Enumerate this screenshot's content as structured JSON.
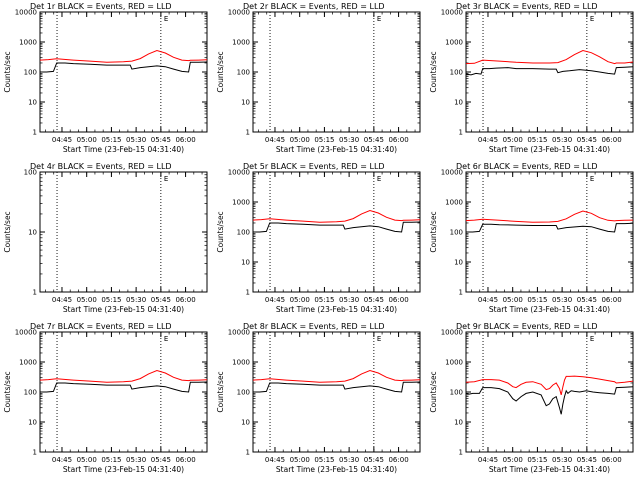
{
  "chart_data": [
    {
      "type": "line",
      "title": "Det 1r BLACK = Events, RED = LLD",
      "ylabel": "Counts/sec",
      "xlabel": "Start Time (23-Feb-15 04:31:40)",
      "x_ticks": [
        "04:45",
        "05:00",
        "05:15",
        "05:30",
        "05:45",
        "06:00"
      ],
      "y_ticks": [
        "1",
        "10",
        "100",
        "1000",
        "10000"
      ],
      "yscale": "log",
      "ylim": [
        1,
        10000
      ],
      "xlim": [
        "04:31:40",
        "06:13"
      ],
      "flag": "E",
      "vlines": [
        "04:42",
        "05:45"
      ],
      "series": [
        {
          "name": "Events",
          "color": "#000000",
          "x": [
            0,
            2,
            4,
            8,
            10,
            15,
            20,
            30,
            40,
            50,
            54,
            55,
            60,
            70,
            75,
            80,
            85,
            89,
            90,
            95,
            100
          ],
          "values": [
            100,
            100,
            100,
            105,
            200,
            200,
            190,
            180,
            170,
            170,
            170,
            125,
            140,
            160,
            150,
            125,
            105,
            100,
            210,
            210,
            215
          ]
        },
        {
          "name": "LLD",
          "color": "#ff0000",
          "x": [
            0,
            5,
            10,
            20,
            30,
            40,
            50,
            55,
            60,
            65,
            70,
            75,
            80,
            85,
            89,
            90,
            95,
            100
          ],
          "values": [
            250,
            260,
            275,
            250,
            230,
            210,
            220,
            230,
            280,
            400,
            520,
            430,
            310,
            250,
            240,
            245,
            250,
            255
          ]
        }
      ]
    },
    {
      "type": "line",
      "title": "Det 2r BLACK = Events, RED = LLD",
      "ylabel": "Counts/sec",
      "xlabel": "Start Time (23-Feb-15 04:31:40)",
      "x_ticks": [
        "04:45",
        "05:00",
        "05:15",
        "05:30",
        "05:45",
        "06:00"
      ],
      "y_ticks": [
        "1",
        "10",
        "100",
        "1000",
        "10000"
      ],
      "yscale": "log",
      "ylim": [
        1,
        10000
      ],
      "xlim": [
        "04:31:40",
        "06:13"
      ],
      "flag": "E",
      "vlines": [
        "04:42",
        "05:45"
      ],
      "series": []
    },
    {
      "type": "line",
      "title": "Det 3r BLACK = Events, RED = LLD",
      "ylabel": "Counts/sec",
      "xlabel": "Start Time (23-Feb-15 04:31:40)",
      "x_ticks": [
        "04:45",
        "05:00",
        "05:15",
        "05:30",
        "05:45",
        "06:00"
      ],
      "y_ticks": [
        "1",
        "10",
        "100",
        "1000",
        "10000"
      ],
      "yscale": "log",
      "ylim": [
        1,
        10000
      ],
      "xlim": [
        "04:31:40",
        "06:13"
      ],
      "flag": "E",
      "vlines": [
        "04:42",
        "05:45"
      ],
      "series": [
        {
          "name": "Events",
          "color": "#000000",
          "x": [
            0,
            3,
            6,
            9,
            10,
            14,
            18,
            25,
            30,
            40,
            50,
            54,
            55,
            58,
            62,
            68,
            75,
            80,
            85,
            89,
            90,
            95,
            100
          ],
          "values": [
            85,
            80,
            90,
            85,
            130,
            130,
            135,
            140,
            130,
            130,
            125,
            125,
            95,
            105,
            110,
            120,
            110,
            100,
            90,
            85,
            140,
            145,
            150
          ]
        },
        {
          "name": "LLD",
          "color": "#ff0000",
          "x": [
            0,
            5,
            10,
            20,
            30,
            40,
            50,
            55,
            60,
            65,
            70,
            75,
            80,
            85,
            89,
            90,
            95,
            100
          ],
          "values": [
            190,
            195,
            250,
            230,
            210,
            200,
            200,
            205,
            260,
            380,
            520,
            440,
            320,
            220,
            190,
            200,
            200,
            215
          ]
        }
      ]
    },
    {
      "type": "line",
      "title": "Det 4r BLACK = Events, RED = LLD",
      "ylabel": "Counts/sec",
      "xlabel": "Start Time (23-Feb-15 04:31:40)",
      "x_ticks": [
        "04:45",
        "05:00",
        "05:15",
        "05:30",
        "05:45",
        "06:00"
      ],
      "y_ticks": [
        "1",
        "10",
        "100"
      ],
      "yscale": "log",
      "ylim": [
        1,
        100
      ],
      "xlim": [
        "04:31:40",
        "06:13"
      ],
      "flag": "E",
      "vlines": [
        "04:42",
        "05:45"
      ],
      "series": []
    },
    {
      "type": "line",
      "title": "Det 5r BLACK = Events, RED = LLD",
      "ylabel": "Counts/sec",
      "xlabel": "Start Time (23-Feb-15 04:31:40)",
      "x_ticks": [
        "04:45",
        "05:00",
        "05:15",
        "05:30",
        "05:45",
        "06:00"
      ],
      "y_ticks": [
        "1",
        "10",
        "100",
        "1000",
        "10000"
      ],
      "yscale": "log",
      "ylim": [
        1,
        10000
      ],
      "xlim": [
        "04:31:40",
        "06:13"
      ],
      "flag": "E",
      "vlines": [
        "04:42",
        "05:45"
      ],
      "series": [
        {
          "name": "Events",
          "color": "#000000",
          "x": [
            0,
            2,
            4,
            8,
            10,
            15,
            20,
            30,
            40,
            50,
            54,
            55,
            60,
            70,
            75,
            80,
            85,
            89,
            90,
            95,
            100
          ],
          "values": [
            100,
            100,
            100,
            105,
            200,
            200,
            190,
            180,
            170,
            170,
            170,
            125,
            140,
            160,
            150,
            125,
            105,
            100,
            210,
            210,
            215
          ]
        },
        {
          "name": "LLD",
          "color": "#ff0000",
          "x": [
            0,
            5,
            10,
            20,
            30,
            40,
            50,
            55,
            60,
            65,
            70,
            75,
            80,
            85,
            89,
            90,
            95,
            100
          ],
          "values": [
            250,
            260,
            275,
            250,
            230,
            210,
            220,
            230,
            280,
            400,
            520,
            430,
            310,
            250,
            240,
            245,
            250,
            255
          ]
        }
      ]
    },
    {
      "type": "line",
      "title": "Det 6r BLACK = Events, RED = LLD",
      "ylabel": "Counts/sec",
      "xlabel": "Start Time (23-Feb-15 04:31:40)",
      "x_ticks": [
        "04:45",
        "05:00",
        "05:15",
        "05:30",
        "05:45",
        "06:00"
      ],
      "y_ticks": [
        "1",
        "10",
        "100",
        "1000",
        "10000"
      ],
      "yscale": "log",
      "ylim": [
        1,
        10000
      ],
      "xlim": [
        "04:31:40",
        "06:13"
      ],
      "flag": "E",
      "vlines": [
        "04:42",
        "05:45"
      ],
      "series": [
        {
          "name": "Events",
          "color": "#000000",
          "x": [
            0,
            2,
            4,
            8,
            10,
            15,
            20,
            30,
            40,
            50,
            54,
            55,
            60,
            70,
            75,
            80,
            85,
            89,
            90,
            95,
            100
          ],
          "values": [
            100,
            100,
            100,
            105,
            180,
            180,
            175,
            170,
            165,
            165,
            165,
            125,
            140,
            155,
            150,
            125,
            105,
            100,
            190,
            190,
            195
          ]
        },
        {
          "name": "LLD",
          "color": "#ff0000",
          "x": [
            0,
            5,
            10,
            20,
            30,
            40,
            50,
            55,
            60,
            65,
            70,
            75,
            80,
            85,
            89,
            90,
            95,
            100
          ],
          "values": [
            240,
            250,
            265,
            245,
            225,
            210,
            215,
            225,
            275,
            390,
            500,
            420,
            300,
            245,
            235,
            240,
            245,
            250
          ]
        }
      ]
    },
    {
      "type": "line",
      "title": "Det 7r BLACK = Events, RED = LLD",
      "ylabel": "Counts/sec",
      "xlabel": "Start Time (23-Feb-15 04:31:40)",
      "x_ticks": [
        "04:45",
        "05:00",
        "05:15",
        "05:30",
        "05:45",
        "06:00"
      ],
      "y_ticks": [
        "1",
        "10",
        "100",
        "1000",
        "10000"
      ],
      "yscale": "log",
      "ylim": [
        1,
        10000
      ],
      "xlim": [
        "04:31:40",
        "06:13"
      ],
      "flag": "E",
      "vlines": [
        "04:42",
        "05:45"
      ],
      "series": [
        {
          "name": "Events",
          "color": "#000000",
          "x": [
            0,
            2,
            4,
            8,
            10,
            15,
            20,
            30,
            40,
            50,
            54,
            55,
            60,
            70,
            75,
            80,
            85,
            89,
            90,
            95,
            100
          ],
          "values": [
            100,
            100,
            100,
            105,
            200,
            200,
            190,
            180,
            170,
            170,
            170,
            125,
            140,
            160,
            150,
            125,
            105,
            100,
            210,
            210,
            215
          ]
        },
        {
          "name": "LLD",
          "color": "#ff0000",
          "x": [
            0,
            5,
            10,
            20,
            30,
            40,
            50,
            55,
            60,
            65,
            70,
            75,
            80,
            85,
            89,
            90,
            95,
            100
          ],
          "values": [
            250,
            260,
            275,
            250,
            230,
            210,
            220,
            230,
            280,
            400,
            520,
            430,
            310,
            250,
            240,
            245,
            250,
            255
          ]
        }
      ]
    },
    {
      "type": "line",
      "title": "Det 8r BLACK = Events, RED = LLD",
      "ylabel": "Counts/sec",
      "xlabel": "Start Time (23-Feb-15 04:31:40)",
      "x_ticks": [
        "04:45",
        "05:00",
        "05:15",
        "05:30",
        "05:45",
        "06:00"
      ],
      "y_ticks": [
        "1",
        "10",
        "100",
        "1000",
        "10000"
      ],
      "yscale": "log",
      "ylim": [
        1,
        10000
      ],
      "xlim": [
        "04:31:40",
        "06:13"
      ],
      "flag": "E",
      "vlines": [
        "04:42",
        "05:45"
      ],
      "series": [
        {
          "name": "Events",
          "color": "#000000",
          "x": [
            0,
            2,
            4,
            8,
            10,
            15,
            20,
            30,
            40,
            50,
            54,
            55,
            60,
            70,
            75,
            80,
            85,
            89,
            90,
            95,
            100
          ],
          "values": [
            100,
            100,
            100,
            105,
            200,
            200,
            190,
            180,
            170,
            170,
            170,
            125,
            140,
            160,
            150,
            125,
            105,
            100,
            210,
            210,
            215
          ]
        },
        {
          "name": "LLD",
          "color": "#ff0000",
          "x": [
            0,
            5,
            10,
            20,
            30,
            40,
            50,
            55,
            60,
            65,
            70,
            75,
            80,
            85,
            89,
            90,
            95,
            100
          ],
          "values": [
            250,
            260,
            275,
            250,
            230,
            210,
            220,
            230,
            280,
            400,
            520,
            430,
            310,
            250,
            240,
            245,
            250,
            255
          ]
        }
      ]
    },
    {
      "type": "line",
      "title": "Det 9r BLACK = Events, RED = LLD",
      "ylabel": "Counts/sec",
      "xlabel": "Start Time (23-Feb-15 04:31:40)",
      "x_ticks": [
        "04:45",
        "05:00",
        "05:15",
        "05:30",
        "05:45",
        "06:00"
      ],
      "y_ticks": [
        "1",
        "10",
        "100",
        "1000",
        "10000"
      ],
      "yscale": "log",
      "ylim": [
        1,
        10000
      ],
      "xlim": [
        "04:31:40",
        "06:13"
      ],
      "flag": "E",
      "vlines": [
        "04:42",
        "05:45"
      ],
      "series": [
        {
          "name": "Events",
          "color": "#000000",
          "x": [
            0,
            2,
            4,
            8,
            10,
            15,
            20,
            25,
            28,
            30,
            33,
            36,
            40,
            45,
            48,
            50,
            52,
            54,
            56,
            57,
            58,
            59,
            60,
            61,
            62,
            63,
            65,
            68,
            72,
            76,
            80,
            85,
            89,
            90,
            95,
            100
          ],
          "values": [
            90,
            85,
            90,
            90,
            140,
            140,
            130,
            100,
            60,
            50,
            70,
            90,
            100,
            80,
            35,
            40,
            60,
            70,
            30,
            18,
            40,
            70,
            110,
            90,
            100,
            110,
            105,
            100,
            110,
            100,
            95,
            90,
            85,
            140,
            145,
            150
          ]
        },
        {
          "name": "LLD",
          "color": "#ff0000",
          "x": [
            0,
            5,
            10,
            15,
            20,
            25,
            28,
            30,
            33,
            36,
            40,
            45,
            48,
            50,
            52,
            54,
            56,
            57,
            58,
            59,
            60,
            62,
            65,
            70,
            75,
            80,
            85,
            89,
            90,
            95,
            100
          ],
          "values": [
            210,
            220,
            260,
            260,
            250,
            200,
            150,
            140,
            180,
            210,
            220,
            180,
            120,
            130,
            170,
            200,
            130,
            80,
            150,
            250,
            330,
            330,
            340,
            320,
            300,
            270,
            240,
            220,
            200,
            210,
            230
          ]
        }
      ]
    }
  ]
}
